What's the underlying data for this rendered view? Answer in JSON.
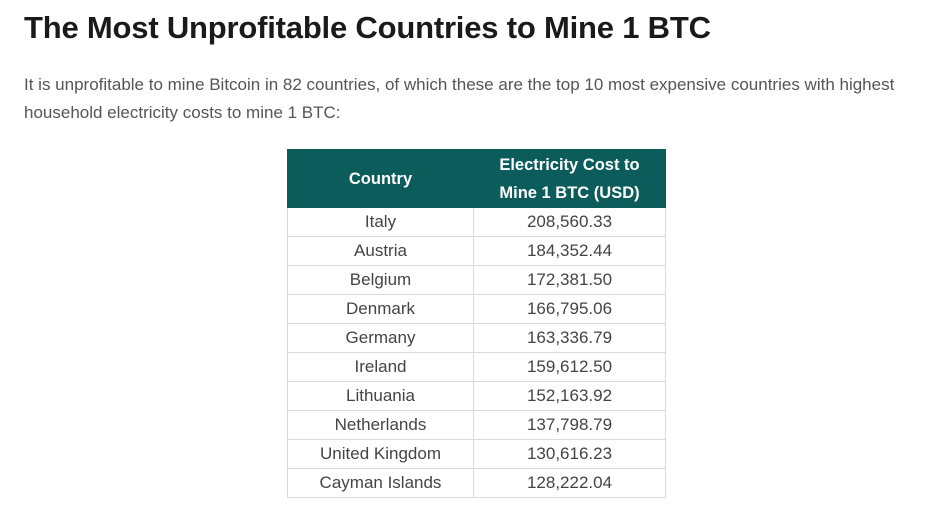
{
  "article": {
    "title": "The Most Unprofitable Countries to Mine 1 BTC",
    "intro": "It is unprofitable to mine Bitcoin in 82 countries, of which these are the top 10 most expensive countries with highest household electricity costs to mine 1 BTC:"
  },
  "table": {
    "header_color": "#0d5c5c",
    "headers": {
      "country": "Country",
      "cost_line1": "Electricity Cost to",
      "cost_line2": "Mine 1 BTC (USD)"
    },
    "rows": [
      {
        "country": "Italy",
        "cost": "208,560.33"
      },
      {
        "country": "Austria",
        "cost": "184,352.44"
      },
      {
        "country": "Belgium",
        "cost": "172,381.50"
      },
      {
        "country": "Denmark",
        "cost": "166,795.06"
      },
      {
        "country": "Germany",
        "cost": "163,336.79"
      },
      {
        "country": "Ireland",
        "cost": "159,612.50"
      },
      {
        "country": "Lithuania",
        "cost": "152,163.92"
      },
      {
        "country": "Netherlands",
        "cost": "137,798.79"
      },
      {
        "country": "United Kingdom",
        "cost": "130,616.23"
      },
      {
        "country": "Cayman Islands",
        "cost": "128,222.04"
      }
    ]
  }
}
